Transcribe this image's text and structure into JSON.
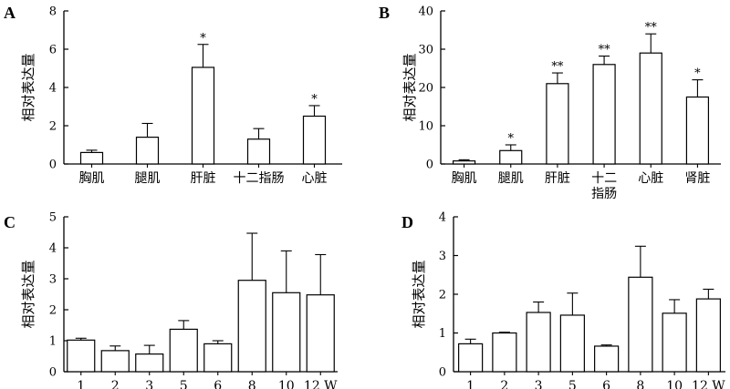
{
  "chart_data": [
    {
      "panel": "A",
      "type": "bar",
      "ylabel": "相对表达量",
      "ylim": [
        0,
        8
      ],
      "yticks": [
        0,
        2,
        4,
        6,
        8
      ],
      "categories": [
        "胸肌",
        "腿肌",
        "肝脏",
        "十二指肠",
        "心脏"
      ],
      "values": [
        0.6,
        1.4,
        5.05,
        1.3,
        2.5
      ],
      "errors": [
        0.12,
        0.72,
        1.2,
        0.55,
        0.55
      ],
      "significance": [
        "",
        "",
        "*",
        "",
        "*"
      ]
    },
    {
      "panel": "B",
      "type": "bar",
      "ylabel": "相对表达量",
      "ylim": [
        0,
        40
      ],
      "yticks": [
        0,
        10,
        20,
        30,
        40
      ],
      "categories": [
        "胸肌",
        "腿肌",
        "肝脏",
        "十二\n指肠",
        "心脏",
        "肾脏"
      ],
      "values": [
        0.8,
        3.5,
        21,
        26,
        29,
        17.5
      ],
      "errors": [
        0.3,
        1.5,
        2.8,
        2.2,
        5.0,
        4.5
      ],
      "significance": [
        "",
        "*",
        "**",
        "**",
        "**",
        "*"
      ]
    },
    {
      "panel": "C",
      "type": "bar",
      "ylabel": "相对表达量",
      "ylim": [
        0,
        5
      ],
      "yticks": [
        0,
        1,
        2,
        3,
        4,
        5
      ],
      "categories": [
        "1",
        "2",
        "3",
        "5",
        "6",
        "8",
        "10",
        "12 W"
      ],
      "values": [
        1.02,
        0.68,
        0.57,
        1.37,
        0.9,
        2.95,
        2.55,
        2.48
      ],
      "errors": [
        0.06,
        0.15,
        0.28,
        0.28,
        0.1,
        1.52,
        1.35,
        1.3
      ],
      "significance": [
        "",
        "",
        "",
        "",
        "",
        "",
        "",
        ""
      ]
    },
    {
      "panel": "D",
      "type": "bar",
      "ylabel": "相对表达量",
      "ylim": [
        0,
        4
      ],
      "yticks": [
        0,
        1,
        2,
        3,
        4
      ],
      "categories": [
        "1",
        "2",
        "3",
        "5",
        "6",
        "8",
        "10",
        "12 W"
      ],
      "values": [
        0.72,
        1.0,
        1.53,
        1.46,
        0.66,
        2.44,
        1.51,
        1.88
      ],
      "errors": [
        0.12,
        0.02,
        0.27,
        0.57,
        0.03,
        0.8,
        0.35,
        0.25
      ],
      "significance": [
        "",
        "",
        "",
        "",
        "",
        "",
        "",
        ""
      ]
    }
  ]
}
